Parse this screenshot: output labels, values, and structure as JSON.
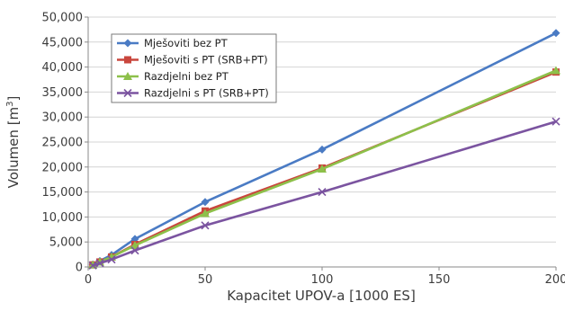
{
  "chart_data": {
    "type": "line",
    "title": "",
    "xlabel": "Kapacitet UPOV-a [1000 ES]",
    "ylabel": "Volumen [m",
    "ylabel_sup": "3",
    "ylabel_end": "]",
    "xlim": [
      0,
      200
    ],
    "ylim": [
      0,
      50000
    ],
    "x_ticks": [
      "0",
      "50",
      "100",
      "150",
      "200"
    ],
    "y_ticks": [
      "0",
      "5,000",
      "10,000",
      "15,000",
      "20,000",
      "25,000",
      "30,000",
      "35,000",
      "40,000",
      "45,000",
      "50,000"
    ],
    "grid": "horizontal",
    "legend_position": "top-left",
    "x": [
      2,
      5,
      10,
      20,
      50,
      100,
      200
    ],
    "series": [
      {
        "name": "Mješoviti bez PT",
        "color": "#4a7bc4",
        "marker": "diamond",
        "values": [
          500,
          1200,
          2400,
          5600,
          13000,
          23500,
          46800
        ]
      },
      {
        "name": "Mješoviti s PT (SRB+PT)",
        "color": "#c9463d",
        "marker": "square",
        "values": [
          420,
          1000,
          2000,
          4500,
          11200,
          19800,
          39000
        ]
      },
      {
        "name": "Razdjelni bez PT",
        "color": "#8dc04a",
        "marker": "triangle",
        "values": [
          420,
          1000,
          2000,
          4300,
          10700,
          19600,
          39300
        ]
      },
      {
        "name": "Razdjelni s PT (SRB+PT)",
        "color": "#7b54a0",
        "marker": "x",
        "values": [
          300,
          750,
          1500,
          3300,
          8300,
          15000,
          29100
        ]
      }
    ]
  }
}
